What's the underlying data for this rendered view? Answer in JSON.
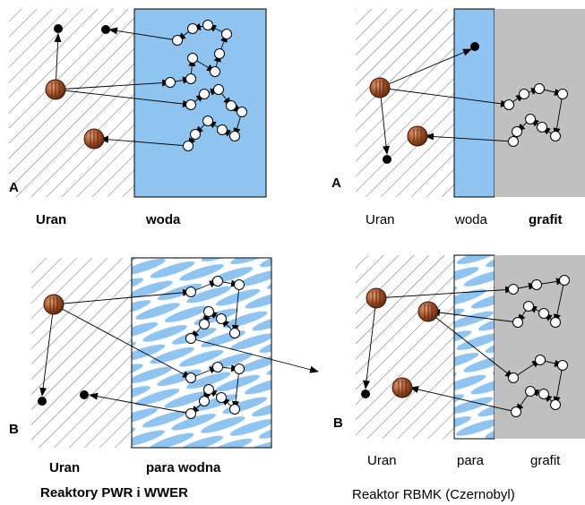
{
  "panels": [
    {
      "letter": "A",
      "labels": [
        "Uran",
        "woda"
      ]
    },
    {
      "letter": "A",
      "labels": [
        "Uran",
        "woda",
        "grafit"
      ]
    },
    {
      "letter": "B",
      "labels": [
        "Uran",
        "para wodna"
      ],
      "caption": "Reaktory PWR i WWER"
    },
    {
      "letter": "B",
      "labels": [
        "Uran",
        "para",
        "grafit"
      ],
      "caption": "Reaktor RBMK (Czernobyl)"
    }
  ]
}
